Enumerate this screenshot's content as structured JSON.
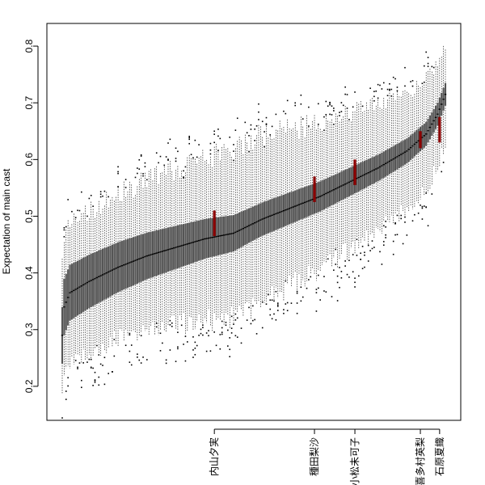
{
  "chart_data": {
    "type": "box",
    "title": "",
    "xlabel": "",
    "ylabel": "Expectation of main cast",
    "ylim": [
      0.14,
      0.84
    ],
    "yticks": [
      0.2,
      0.3,
      0.4,
      0.5,
      0.6,
      0.7,
      0.8
    ],
    "n_boxes": 200,
    "median_curve": [
      {
        "rank": 1,
        "value": 0.29
      },
      {
        "rank": 2,
        "value": 0.34
      },
      {
        "rank": 5,
        "value": 0.365
      },
      {
        "rank": 15,
        "value": 0.385
      },
      {
        "rank": 30,
        "value": 0.41
      },
      {
        "rank": 45,
        "value": 0.43
      },
      {
        "rank": 60,
        "value": 0.445
      },
      {
        "rank": 75,
        "value": 0.46
      },
      {
        "rank": 90,
        "value": 0.47
      },
      {
        "rank": 105,
        "value": 0.495
      },
      {
        "rank": 120,
        "value": 0.515
      },
      {
        "rank": 135,
        "value": 0.535
      },
      {
        "rank": 150,
        "value": 0.56
      },
      {
        "rank": 165,
        "value": 0.585
      },
      {
        "rank": 180,
        "value": 0.615
      },
      {
        "rank": 190,
        "value": 0.645
      },
      {
        "rank": 196,
        "value": 0.68
      },
      {
        "rank": 200,
        "value": 0.715
      }
    ],
    "box_half_width": [
      {
        "rank": 1,
        "value": 0.05
      },
      {
        "rank": 100,
        "value": 0.03
      },
      {
        "rank": 200,
        "value": 0.02
      }
    ],
    "whisker_half_width": [
      {
        "rank": 1,
        "value": 0.12
      },
      {
        "rank": 100,
        "value": 0.15
      },
      {
        "rank": 200,
        "value": 0.09
      }
    ],
    "highlight_color": "#8b0000",
    "box_color": "#555555",
    "highlighted": [
      {
        "label": "内山夕実",
        "rank": 80,
        "median": 0.485,
        "q1": 0.465,
        "q3": 0.51
      },
      {
        "label": "種田梨沙",
        "rank": 132,
        "median": 0.545,
        "q1": 0.525,
        "q3": 0.57
      },
      {
        "label": "小松未可子",
        "rank": 153,
        "median": 0.575,
        "q1": 0.555,
        "q3": 0.6
      },
      {
        "label": "喜多村英梨",
        "rank": 187,
        "median": 0.635,
        "q1": 0.62,
        "q3": 0.65
      },
      {
        "label": "石原夏織",
        "rank": 197,
        "median": 0.655,
        "q1": 0.63,
        "q3": 0.675
      }
    ]
  }
}
